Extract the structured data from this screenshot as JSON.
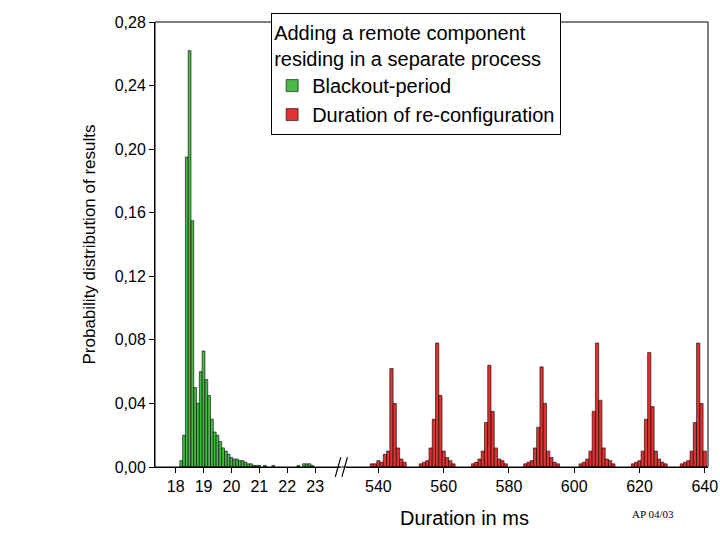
{
  "chart_data": {
    "type": "bar",
    "xlabel": "Duration in ms",
    "ylabel": "Probability distribution of results",
    "annotations": [
      {
        "text": "Adding a remote component\nresiding in a separate process"
      },
      {
        "text": "AP 04/03"
      }
    ],
    "xlim": [
      [
        17.26,
        23.9
      ],
      [
        530,
        641
      ]
    ],
    "xticks": [
      [
        18,
        19,
        20,
        21,
        22,
        23
      ],
      [
        540,
        560,
        580,
        600,
        620,
        640
      ]
    ],
    "ylim": [
      0,
      0.28
    ],
    "yticks": [
      {
        "value": 0,
        "label": "0,00"
      },
      {
        "value": 0.04,
        "label": "0,04"
      },
      {
        "value": 0.08,
        "label": "0,08"
      },
      {
        "value": 0.12,
        "label": "0,12"
      },
      {
        "value": 0.16,
        "label": "0,16"
      },
      {
        "value": 0.2,
        "label": "0,20"
      },
      {
        "value": 0.24,
        "label": "0,24"
      },
      {
        "value": 0.28,
        "label": "0,28"
      }
    ],
    "grid": false,
    "legend": "top",
    "series": [
      {
        "name": "Blackout-period",
        "color": "#4cb84a",
        "axis": "x",
        "x": [
          18.2,
          18.3,
          18.4,
          18.5,
          18.6,
          18.7,
          18.8,
          18.9,
          19.0,
          19.1,
          19.2,
          19.3,
          19.4,
          19.5,
          19.6,
          19.7,
          19.8,
          19.9,
          20.0,
          20.1,
          20.2,
          20.3,
          20.4,
          20.5,
          20.6,
          20.7,
          20.8,
          20.9,
          21.0,
          21.2,
          21.5,
          22.4,
          22.6,
          22.7,
          22.8,
          22.9
        ],
        "values": [
          0.004,
          0.02,
          0.195,
          0.262,
          0.155,
          0.05,
          0.04,
          0.06,
          0.073,
          0.055,
          0.045,
          0.03,
          0.022,
          0.02,
          0.016,
          0.012,
          0.01,
          0.008,
          0.006,
          0.005,
          0.005,
          0.004,
          0.004,
          0.003,
          0.002,
          0.002,
          0.001,
          0.001,
          0.001,
          0.001,
          0.001,
          0.001,
          0.002,
          0.002,
          0.002,
          0.001
        ]
      },
      {
        "name": "Duration of re-configuration",
        "color": "#e03232",
        "axis": "x2",
        "x": [
          538,
          539,
          540,
          541,
          542,
          543,
          544,
          545,
          546,
          547,
          548,
          553,
          554,
          555,
          556,
          557,
          558,
          559,
          560,
          561,
          562,
          563,
          569,
          570,
          571,
          572,
          573,
          574,
          575,
          576,
          577,
          578,
          579,
          585,
          586,
          587,
          588,
          589,
          590,
          591,
          592,
          593,
          594,
          595,
          602,
          603,
          604,
          605,
          606,
          607,
          608,
          609,
          610,
          611,
          612,
          618,
          619,
          620,
          621,
          622,
          623,
          624,
          625,
          626,
          627,
          628,
          633,
          634,
          635,
          636,
          637,
          638,
          639,
          640
        ],
        "values": [
          0.002,
          0.002,
          0.004,
          0.003,
          0.008,
          0.01,
          0.062,
          0.04,
          0.012,
          0.005,
          0.003,
          0.002,
          0.003,
          0.004,
          0.012,
          0.03,
          0.078,
          0.045,
          0.01,
          0.006,
          0.004,
          0.002,
          0.002,
          0.003,
          0.005,
          0.01,
          0.028,
          0.064,
          0.035,
          0.012,
          0.005,
          0.004,
          0.002,
          0.002,
          0.003,
          0.004,
          0.012,
          0.025,
          0.063,
          0.04,
          0.01,
          0.006,
          0.003,
          0.002,
          0.002,
          0.003,
          0.005,
          0.01,
          0.035,
          0.078,
          0.042,
          0.012,
          0.005,
          0.004,
          0.002,
          0.002,
          0.003,
          0.004,
          0.01,
          0.03,
          0.072,
          0.038,
          0.01,
          0.005,
          0.003,
          0.002,
          0.002,
          0.003,
          0.004,
          0.01,
          0.028,
          0.078,
          0.04,
          0.01
        ]
      }
    ]
  }
}
